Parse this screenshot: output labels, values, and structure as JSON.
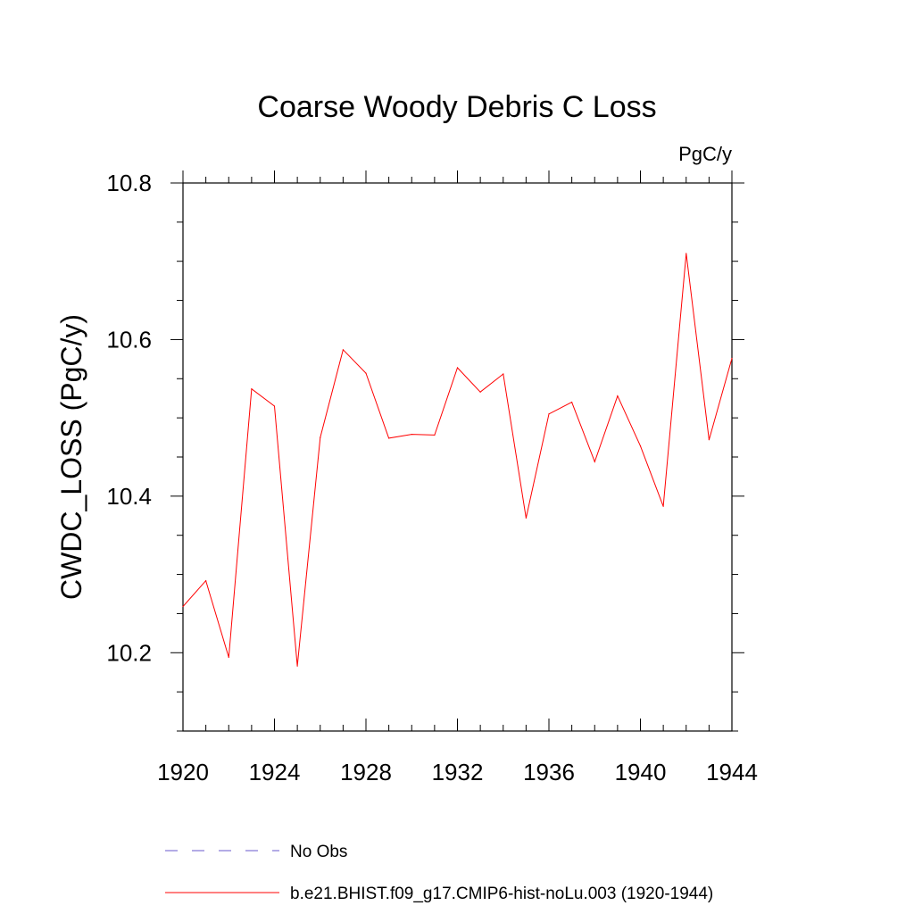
{
  "chart_data": {
    "type": "line",
    "title": "Coarse Woody Debris C Loss",
    "units_label": "PgC/y",
    "xlabel": "",
    "ylabel": "CWDC_LOSS  (PgC/y)",
    "xlim": [
      1920,
      1944
    ],
    "ylim": [
      10.1,
      10.8
    ],
    "x_ticks": [
      "1920",
      "1924",
      "1928",
      "1932",
      "1936",
      "1940",
      "1944"
    ],
    "y_ticks": [
      "10.2",
      "10.4",
      "10.6",
      "10.8"
    ],
    "grid": false,
    "legend_position": "bottom",
    "series": [
      {
        "name": "b.e21.BHIST.f09_g17.CMIP6-hist-noLu.003 (1920-1944)",
        "color": "#ff0000",
        "dash": "solid",
        "x": [
          1920,
          1921,
          1922,
          1923,
          1924,
          1925,
          1926,
          1927,
          1928,
          1929,
          1930,
          1931,
          1932,
          1933,
          1934,
          1935,
          1936,
          1937,
          1938,
          1939,
          1940,
          1941,
          1942,
          1943,
          1944
        ],
        "y": [
          10.259,
          10.292,
          10.194,
          10.537,
          10.515,
          10.183,
          10.475,
          10.587,
          10.557,
          10.474,
          10.479,
          10.478,
          10.564,
          10.533,
          10.556,
          10.372,
          10.505,
          10.52,
          10.444,
          10.528,
          10.464,
          10.387,
          10.71,
          10.472,
          10.576
        ]
      }
    ],
    "legend": [
      {
        "label": "No Obs",
        "color": "#6a5acd",
        "dash": "dashed"
      },
      {
        "label": "b.e21.BHIST.f09_g17.CMIP6-hist-noLu.003 (1920-1944)",
        "color": "#ff0000",
        "dash": "solid"
      }
    ]
  }
}
